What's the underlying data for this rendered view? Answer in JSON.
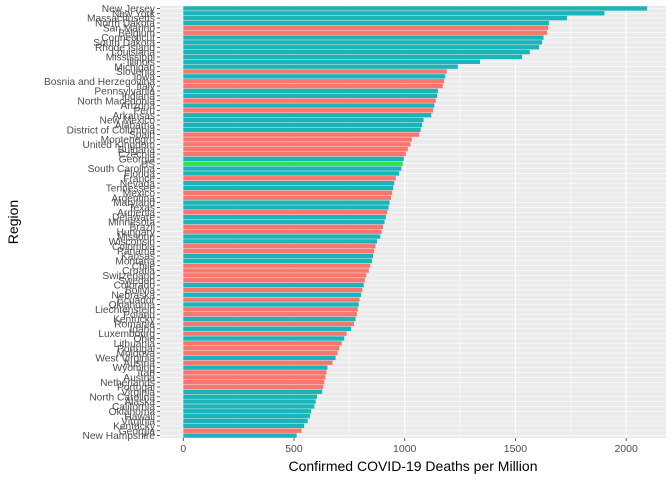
{
  "chart_data": {
    "type": "bar",
    "orientation": "horizontal",
    "xlabel": "Confirmed COVID-19 Deaths per Million",
    "ylabel": "Region",
    "xlim": [
      -105,
      2180
    ],
    "xticks": [
      0,
      500,
      1000,
      1500,
      2000
    ],
    "grid": true,
    "legend": "none",
    "colors": {
      "us_state": "#1BB5B9",
      "country": "#F8766D",
      "us_total": "#2BE34A",
      "panel": "#EBEBEB",
      "gridline": "#FFFFFF",
      "text": "#4D4D4D"
    },
    "bars": [
      {
        "label": "New Jersey",
        "value": 2095,
        "group": "us_state"
      },
      {
        "label": "New York",
        "value": 1902,
        "group": "us_state"
      },
      {
        "label": "Massachusetts",
        "value": 1733,
        "group": "us_state"
      },
      {
        "label": "North Dakota",
        "value": 1652,
        "group": "us_state"
      },
      {
        "label": "San Marino",
        "value": 1648,
        "group": "country"
      },
      {
        "label": "Belgium",
        "value": 1643,
        "group": "country"
      },
      {
        "label": "Connecticut",
        "value": 1627,
        "group": "us_state"
      },
      {
        "label": "South Dakota",
        "value": 1620,
        "group": "us_state"
      },
      {
        "label": "Rhode Island",
        "value": 1607,
        "group": "us_state"
      },
      {
        "label": "Louisiana",
        "value": 1565,
        "group": "us_state"
      },
      {
        "label": "Mississippi",
        "value": 1530,
        "group": "us_state"
      },
      {
        "label": "Illinois",
        "value": 1340,
        "group": "us_state"
      },
      {
        "label": "Michigan",
        "value": 1240,
        "group": "us_state"
      },
      {
        "label": "Slovenia",
        "value": 1190,
        "group": "country"
      },
      {
        "label": "Iowa",
        "value": 1183,
        "group": "us_state"
      },
      {
        "label": "Bosnia and Herzegovina",
        "value": 1178,
        "group": "country"
      },
      {
        "label": "Italy",
        "value": 1172,
        "group": "country"
      },
      {
        "label": "Pennsylvania",
        "value": 1150,
        "group": "us_state"
      },
      {
        "label": "Indiana",
        "value": 1146,
        "group": "us_state"
      },
      {
        "label": "North Macedonia",
        "value": 1140,
        "group": "country"
      },
      {
        "label": "Arizona",
        "value": 1134,
        "group": "us_state"
      },
      {
        "label": "Peru",
        "value": 1128,
        "group": "country"
      },
      {
        "label": "Arkansas",
        "value": 1120,
        "group": "us_state"
      },
      {
        "label": "New Mexico",
        "value": 1085,
        "group": "us_state"
      },
      {
        "label": "Alabama",
        "value": 1078,
        "group": "us_state"
      },
      {
        "label": "District of Columbia",
        "value": 1072,
        "group": "us_state"
      },
      {
        "label": "Spain",
        "value": 1066,
        "group": "country"
      },
      {
        "label": "Montenegro",
        "value": 1032,
        "group": "country"
      },
      {
        "label": "United Kingdom",
        "value": 1026,
        "group": "country"
      },
      {
        "label": "Bulgaria",
        "value": 1014,
        "group": "country"
      },
      {
        "label": "Czechia",
        "value": 1005,
        "group": "country"
      },
      {
        "label": "Georgia",
        "value": 996,
        "group": "us_state"
      },
      {
        "label": "US",
        "value": 991,
        "group": "us_total"
      },
      {
        "label": "South Carolina",
        "value": 985,
        "group": "us_state"
      },
      {
        "label": "Florida",
        "value": 975,
        "group": "us_state"
      },
      {
        "label": "France",
        "value": 960,
        "group": "country"
      },
      {
        "label": "Nevada",
        "value": 953,
        "group": "us_state"
      },
      {
        "label": "Tennessee",
        "value": 948,
        "group": "us_state"
      },
      {
        "label": "Mexico",
        "value": 943,
        "group": "country"
      },
      {
        "label": "Argentina",
        "value": 938,
        "group": "country"
      },
      {
        "label": "Maryland",
        "value": 932,
        "group": "us_state"
      },
      {
        "label": "Texas",
        "value": 927,
        "group": "us_state"
      },
      {
        "label": "Armenia",
        "value": 921,
        "group": "country"
      },
      {
        "label": "Delaware",
        "value": 915,
        "group": "us_state"
      },
      {
        "label": "Minnesota",
        "value": 909,
        "group": "us_state"
      },
      {
        "label": "Brazil",
        "value": 902,
        "group": "country"
      },
      {
        "label": "Hungary",
        "value": 896,
        "group": "country"
      },
      {
        "label": "Missouri",
        "value": 890,
        "group": "us_state"
      },
      {
        "label": "Wisconsin",
        "value": 875,
        "group": "us_state"
      },
      {
        "label": "Colombia",
        "value": 868,
        "group": "country"
      },
      {
        "label": "Panama",
        "value": 862,
        "group": "country"
      },
      {
        "label": "Kansas",
        "value": 857,
        "group": "us_state"
      },
      {
        "label": "Montana",
        "value": 852,
        "group": "us_state"
      },
      {
        "label": "Chile",
        "value": 845,
        "group": "country"
      },
      {
        "label": "Croatia",
        "value": 838,
        "group": "country"
      },
      {
        "label": "Switzerland",
        "value": 826,
        "group": "country"
      },
      {
        "label": "Sweden",
        "value": 820,
        "group": "country"
      },
      {
        "label": "Colorado",
        "value": 815,
        "group": "us_state"
      },
      {
        "label": "Bolivia",
        "value": 809,
        "group": "country"
      },
      {
        "label": "Nebraska",
        "value": 803,
        "group": "us_state"
      },
      {
        "label": "Ecuador",
        "value": 796,
        "group": "country"
      },
      {
        "label": "Oklahoma",
        "value": 792,
        "group": "us_state"
      },
      {
        "label": "Liechtenstein",
        "value": 788,
        "group": "country"
      },
      {
        "label": "Poland",
        "value": 784,
        "group": "country"
      },
      {
        "label": "Kentucky",
        "value": 778,
        "group": "us_state"
      },
      {
        "label": "Romania",
        "value": 771,
        "group": "country"
      },
      {
        "label": "Idaho",
        "value": 758,
        "group": "us_state"
      },
      {
        "label": "Luxembourg",
        "value": 738,
        "group": "country"
      },
      {
        "label": "Ohio",
        "value": 727,
        "group": "us_state"
      },
      {
        "label": "Lithuania",
        "value": 715,
        "group": "country"
      },
      {
        "label": "Portugal",
        "value": 704,
        "group": "country"
      },
      {
        "label": "Moldova",
        "value": 697,
        "group": "country"
      },
      {
        "label": "West Virginia",
        "value": 688,
        "group": "us_state"
      },
      {
        "label": "Austria",
        "value": 674,
        "group": "country"
      },
      {
        "label": "Wyoming",
        "value": 651,
        "group": "us_state"
      },
      {
        "label": "Iran",
        "value": 647,
        "group": "country"
      },
      {
        "label": "Austria",
        "value": 642,
        "group": "country"
      },
      {
        "label": "Netherlands",
        "value": 637,
        "group": "country"
      },
      {
        "label": "Portugal",
        "value": 632,
        "group": "country"
      },
      {
        "label": "Virginia",
        "value": 627,
        "group": "us_state"
      },
      {
        "label": "North Carolina",
        "value": 604,
        "group": "us_state"
      },
      {
        "label": "Alaska",
        "value": 598,
        "group": "us_state"
      },
      {
        "label": "California",
        "value": 592,
        "group": "us_state"
      },
      {
        "label": "Oklahoma",
        "value": 578,
        "group": "us_state"
      },
      {
        "label": "Hawaii",
        "value": 572,
        "group": "us_state"
      },
      {
        "label": "Virginia",
        "value": 562,
        "group": "us_state"
      },
      {
        "label": "Kentucky",
        "value": 546,
        "group": "us_state"
      },
      {
        "label": "Georgia",
        "value": 534,
        "group": "country"
      },
      {
        "label": "New Hampshire",
        "value": 512,
        "group": "us_state"
      }
    ]
  }
}
